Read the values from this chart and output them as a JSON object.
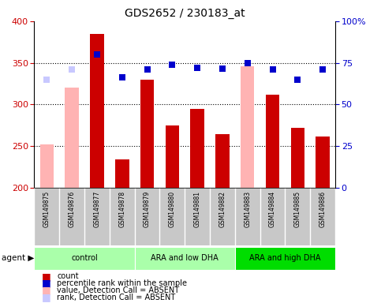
{
  "title": "GDS2652 / 230183_at",
  "samples": [
    "GSM149875",
    "GSM149876",
    "GSM149877",
    "GSM149878",
    "GSM149879",
    "GSM149880",
    "GSM149881",
    "GSM149882",
    "GSM149883",
    "GSM149884",
    "GSM149885",
    "GSM149886"
  ],
  "bar_values": [
    252,
    320,
    385,
    234,
    330,
    275,
    295,
    264,
    346,
    312,
    272,
    262
  ],
  "bar_colors": [
    "#FFB3B3",
    "#FFB3B3",
    "#CC0000",
    "#CC0000",
    "#CC0000",
    "#CC0000",
    "#CC0000",
    "#CC0000",
    "#FFB3B3",
    "#CC0000",
    "#CC0000",
    "#CC0000"
  ],
  "percentile_values": [
    330,
    342,
    360,
    333,
    342,
    348,
    344,
    343,
    350,
    342,
    330,
    342
  ],
  "percentile_colors": [
    "#C8C8FF",
    "#C8C8FF",
    "#0000CC",
    "#0000CC",
    "#0000CC",
    "#0000CC",
    "#0000CC",
    "#0000CC",
    "#0000CC",
    "#0000CC",
    "#0000CC",
    "#0000CC"
  ],
  "ylim": [
    200,
    400
  ],
  "y_left_ticks": [
    200,
    250,
    300,
    350,
    400
  ],
  "y_right_ticks": [
    0,
    25,
    50,
    75,
    100
  ],
  "groups": [
    {
      "label": "control",
      "start": 0,
      "end": 3,
      "color": "#AAFFAA"
    },
    {
      "label": "ARA and low DHA",
      "start": 4,
      "end": 7,
      "color": "#AAFFAA"
    },
    {
      "label": "ARA and high DHA",
      "start": 8,
      "end": 11,
      "color": "#00DD00"
    }
  ],
  "bg_color": "#FFFFFF",
  "tick_color_left": "#CC0000",
  "tick_color_right": "#0000CC",
  "dotted_lines": [
    250,
    300,
    350
  ],
  "bar_bottom": 200,
  "marker_size": 6,
  "bar_width": 0.55,
  "legend": [
    {
      "color": "#CC0000",
      "label": "count"
    },
    {
      "color": "#0000CC",
      "label": "percentile rank within the sample"
    },
    {
      "color": "#FFB3B3",
      "label": "value, Detection Call = ABSENT"
    },
    {
      "color": "#C8C8FF",
      "label": "rank, Detection Call = ABSENT"
    }
  ]
}
